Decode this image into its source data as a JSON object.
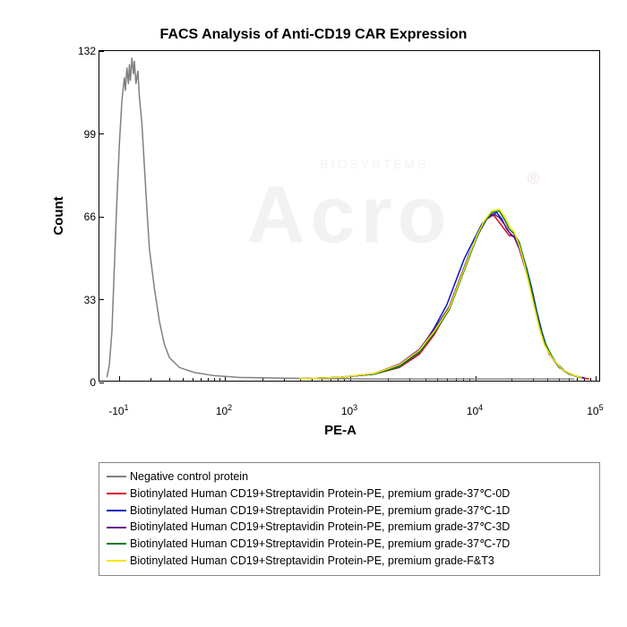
{
  "chart": {
    "title": "FACS Analysis of Anti-CD19 CAR Expression",
    "title_fontsize": 16,
    "x_label": "PE-A",
    "y_label": "Count",
    "background_color": "#ffffff",
    "axis_color": "#000000",
    "watermark_text": "Acro",
    "watermark_sub": "BIOSYSTEMS",
    "watermark_color": "#f2f2f2",
    "y_axis": {
      "min": 0,
      "max": 132,
      "ticks": [
        0,
        33,
        66,
        99,
        132
      ]
    },
    "x_axis": {
      "type": "log_biexponential",
      "ticks": [
        {
          "label_html": "-10<sup>1</sup>",
          "pos_frac": 0.04
        },
        {
          "label_html": "10<sup>2</sup>",
          "pos_frac": 0.25
        },
        {
          "label_html": "10<sup>3</sup>",
          "pos_frac": 0.5
        },
        {
          "label_html": "10<sup>4</sup>",
          "pos_frac": 0.75
        },
        {
          "label_html": "10<sup>5</sup>",
          "pos_frac": 0.99
        }
      ]
    },
    "series": [
      {
        "name": "Negative control protein",
        "color": "#808080",
        "line_width": 1.5,
        "points": [
          [
            0.015,
            0.01
          ],
          [
            0.02,
            0.05
          ],
          [
            0.025,
            0.15
          ],
          [
            0.03,
            0.35
          ],
          [
            0.035,
            0.55
          ],
          [
            0.04,
            0.72
          ],
          [
            0.045,
            0.85
          ],
          [
            0.05,
            0.92
          ],
          [
            0.052,
            0.88
          ],
          [
            0.055,
            0.95
          ],
          [
            0.058,
            0.9
          ],
          [
            0.06,
            0.96
          ],
          [
            0.062,
            0.91
          ],
          [
            0.065,
            0.98
          ],
          [
            0.068,
            0.93
          ],
          [
            0.07,
            0.97
          ],
          [
            0.073,
            0.9
          ],
          [
            0.077,
            0.94
          ],
          [
            0.08,
            0.86
          ],
          [
            0.085,
            0.78
          ],
          [
            0.09,
            0.65
          ],
          [
            0.095,
            0.52
          ],
          [
            0.1,
            0.4
          ],
          [
            0.11,
            0.28
          ],
          [
            0.12,
            0.18
          ],
          [
            0.13,
            0.11
          ],
          [
            0.14,
            0.07
          ],
          [
            0.16,
            0.04
          ],
          [
            0.19,
            0.025
          ],
          [
            0.23,
            0.015
          ],
          [
            0.28,
            0.01
          ],
          [
            0.35,
            0.008
          ],
          [
            0.45,
            0.006
          ],
          [
            0.55,
            0.005
          ],
          [
            0.65,
            0.005
          ],
          [
            0.75,
            0.005
          ],
          [
            0.85,
            0.005
          ],
          [
            0.95,
            0.005
          ]
        ]
      },
      {
        "name": "Biotinylated Human CD19+Streptavidin Protein-PE, premium grade-37℃-0D",
        "color": "#e3001b",
        "line_width": 1.5,
        "points": [
          [
            0.4,
            0.006
          ],
          [
            0.48,
            0.01
          ],
          [
            0.55,
            0.02
          ],
          [
            0.6,
            0.04
          ],
          [
            0.64,
            0.08
          ],
          [
            0.67,
            0.14
          ],
          [
            0.7,
            0.22
          ],
          [
            0.72,
            0.3
          ],
          [
            0.74,
            0.38
          ],
          [
            0.755,
            0.44
          ],
          [
            0.77,
            0.48
          ],
          [
            0.78,
            0.505
          ],
          [
            0.79,
            0.5
          ],
          [
            0.8,
            0.48
          ],
          [
            0.81,
            0.46
          ],
          [
            0.82,
            0.44
          ],
          [
            0.83,
            0.44
          ],
          [
            0.84,
            0.41
          ],
          [
            0.85,
            0.36
          ],
          [
            0.86,
            0.3
          ],
          [
            0.87,
            0.24
          ],
          [
            0.88,
            0.17
          ],
          [
            0.89,
            0.12
          ],
          [
            0.9,
            0.08
          ],
          [
            0.92,
            0.04
          ],
          [
            0.94,
            0.02
          ],
          [
            0.96,
            0.01
          ],
          [
            0.98,
            0.005
          ]
        ]
      },
      {
        "name": "Biotinylated Human CD19+Streptavidin Protein-PE, premium grade-37℃-1D",
        "color": "#0018c4",
        "line_width": 1.5,
        "points": [
          [
            0.4,
            0.006
          ],
          [
            0.48,
            0.01
          ],
          [
            0.55,
            0.02
          ],
          [
            0.6,
            0.045
          ],
          [
            0.64,
            0.09
          ],
          [
            0.67,
            0.16
          ],
          [
            0.695,
            0.23
          ],
          [
            0.71,
            0.29
          ],
          [
            0.73,
            0.37
          ],
          [
            0.75,
            0.43
          ],
          [
            0.765,
            0.475
          ],
          [
            0.78,
            0.5
          ],
          [
            0.795,
            0.51
          ],
          [
            0.805,
            0.49
          ],
          [
            0.815,
            0.46
          ],
          [
            0.825,
            0.44
          ],
          [
            0.835,
            0.43
          ],
          [
            0.845,
            0.39
          ],
          [
            0.855,
            0.34
          ],
          [
            0.865,
            0.28
          ],
          [
            0.875,
            0.21
          ],
          [
            0.885,
            0.15
          ],
          [
            0.895,
            0.1
          ],
          [
            0.91,
            0.06
          ],
          [
            0.93,
            0.03
          ],
          [
            0.95,
            0.015
          ],
          [
            0.97,
            0.008
          ]
        ]
      },
      {
        "name": "Biotinylated Human CD19+Streptavidin Protein-PE, premium grade-37℃-3D",
        "color": "#6a0f8c",
        "line_width": 1.5,
        "points": [
          [
            0.4,
            0.006
          ],
          [
            0.48,
            0.01
          ],
          [
            0.55,
            0.022
          ],
          [
            0.6,
            0.05
          ],
          [
            0.64,
            0.095
          ],
          [
            0.67,
            0.155
          ],
          [
            0.7,
            0.225
          ],
          [
            0.72,
            0.305
          ],
          [
            0.74,
            0.385
          ],
          [
            0.76,
            0.45
          ],
          [
            0.775,
            0.49
          ],
          [
            0.79,
            0.505
          ],
          [
            0.8,
            0.495
          ],
          [
            0.81,
            0.475
          ],
          [
            0.82,
            0.45
          ],
          [
            0.83,
            0.435
          ],
          [
            0.84,
            0.4
          ],
          [
            0.85,
            0.35
          ],
          [
            0.86,
            0.295
          ],
          [
            0.87,
            0.225
          ],
          [
            0.88,
            0.165
          ],
          [
            0.89,
            0.115
          ],
          [
            0.905,
            0.07
          ],
          [
            0.925,
            0.035
          ],
          [
            0.945,
            0.018
          ],
          [
            0.965,
            0.009
          ]
        ]
      },
      {
        "name": "Biotinylated Human CD19+Streptavidin Protein-PE, premium grade-37℃-7D",
        "color": "#0a7a1e",
        "line_width": 1.5,
        "points": [
          [
            0.4,
            0.006
          ],
          [
            0.48,
            0.01
          ],
          [
            0.55,
            0.02
          ],
          [
            0.6,
            0.042
          ],
          [
            0.64,
            0.085
          ],
          [
            0.67,
            0.145
          ],
          [
            0.7,
            0.215
          ],
          [
            0.72,
            0.295
          ],
          [
            0.74,
            0.375
          ],
          [
            0.755,
            0.435
          ],
          [
            0.77,
            0.48
          ],
          [
            0.785,
            0.51
          ],
          [
            0.8,
            0.515
          ],
          [
            0.81,
            0.49
          ],
          [
            0.82,
            0.46
          ],
          [
            0.83,
            0.445
          ],
          [
            0.84,
            0.42
          ],
          [
            0.85,
            0.365
          ],
          [
            0.86,
            0.305
          ],
          [
            0.87,
            0.235
          ],
          [
            0.88,
            0.17
          ],
          [
            0.89,
            0.12
          ],
          [
            0.905,
            0.075
          ],
          [
            0.92,
            0.04
          ],
          [
            0.94,
            0.02
          ],
          [
            0.96,
            0.01
          ]
        ]
      },
      {
        "name": "Biotinylated Human CD19+Streptavidin Protein-PE, premium grade-F&T3",
        "color": "#f5e500",
        "line_width": 1.5,
        "points": [
          [
            0.4,
            0.006
          ],
          [
            0.48,
            0.01
          ],
          [
            0.55,
            0.022
          ],
          [
            0.6,
            0.048
          ],
          [
            0.64,
            0.092
          ],
          [
            0.67,
            0.15
          ],
          [
            0.7,
            0.22
          ],
          [
            0.72,
            0.3
          ],
          [
            0.74,
            0.38
          ],
          [
            0.755,
            0.44
          ],
          [
            0.77,
            0.485
          ],
          [
            0.785,
            0.515
          ],
          [
            0.8,
            0.52
          ],
          [
            0.81,
            0.5
          ],
          [
            0.82,
            0.47
          ],
          [
            0.83,
            0.45
          ],
          [
            0.84,
            0.41
          ],
          [
            0.85,
            0.355
          ],
          [
            0.86,
            0.29
          ],
          [
            0.87,
            0.225
          ],
          [
            0.88,
            0.16
          ],
          [
            0.89,
            0.11
          ],
          [
            0.905,
            0.07
          ],
          [
            0.925,
            0.035
          ],
          [
            0.945,
            0.018
          ],
          [
            0.965,
            0.009
          ]
        ]
      }
    ]
  }
}
